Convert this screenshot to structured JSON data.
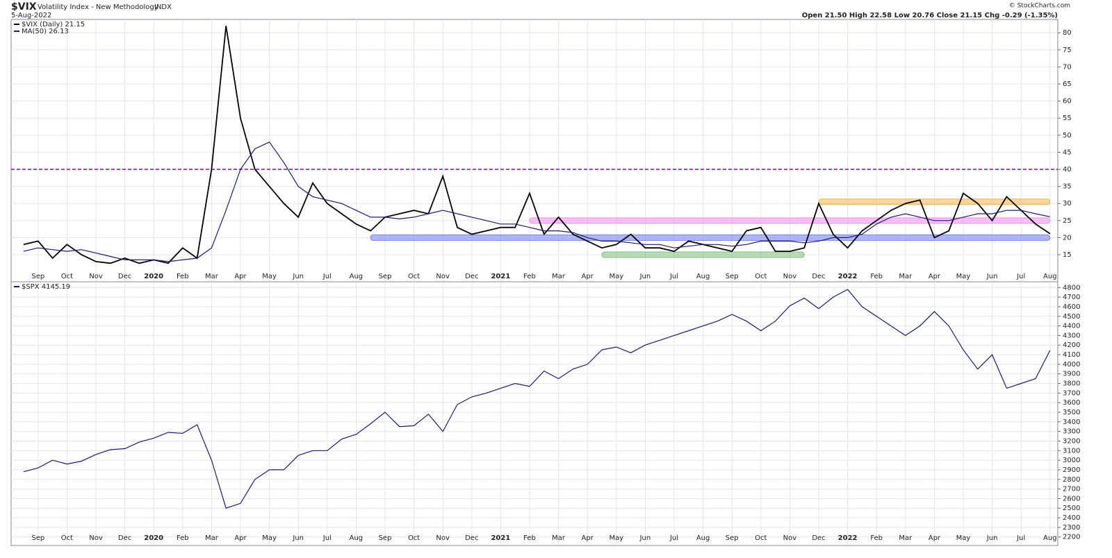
{
  "header": {
    "symbol": "$VIX",
    "name": "Volatility Index - New Methodology",
    "exchange": "INDX",
    "date": "5-Aug-2022",
    "copyright": "© StockCharts.com",
    "ohlc": "Open 21.50  High 22.58  Low 20.76  Close 21.15  Chg -0.29 (-1.35%)"
  },
  "chart_data": [
    {
      "type": "line",
      "categories": [
        null,
        "Sep",
        null,
        "Oct",
        null,
        "Nov",
        null,
        "Dec",
        null,
        "2020",
        null,
        "Feb",
        null,
        "Mar",
        null,
        "Apr",
        null,
        "May",
        null,
        "Jun",
        null,
        "Jul",
        null,
        "Aug",
        null,
        "Sep",
        null,
        "Oct",
        null,
        "Nov",
        null,
        "Dec",
        null,
        "2021",
        null,
        "Feb",
        null,
        "Mar",
        null,
        "Apr",
        null,
        "May",
        null,
        "Jun",
        null,
        "Jul",
        null,
        "Aug",
        null,
        "Sep",
        null,
        "Oct",
        null,
        "Nov",
        null,
        "Dec",
        null,
        "2022",
        null,
        "Feb",
        null,
        "Mar",
        null,
        "Apr",
        null,
        "May",
        null,
        "Jun",
        null,
        "Jul",
        null,
        "Aug"
      ],
      "series": [
        {
          "name": "$VIX (Daily) 21.15",
          "color": "#000000",
          "values": [
            18,
            19,
            14,
            18,
            15,
            13,
            12.5,
            14,
            12.5,
            13.5,
            12.5,
            17,
            14,
            40,
            82,
            55,
            40,
            35,
            30,
            26,
            36,
            30,
            27,
            24,
            22,
            26,
            27,
            28,
            27,
            38,
            23,
            21,
            22,
            23,
            23,
            33,
            21,
            26,
            21,
            19,
            17,
            18,
            21,
            17,
            17,
            16,
            19,
            18,
            17,
            16,
            22,
            23,
            16,
            16,
            17,
            30,
            21,
            17,
            22,
            25,
            28,
            30,
            31,
            20,
            22,
            33,
            30,
            25,
            32,
            28,
            24,
            21.15
          ]
        },
        {
          "name": "MA(50) 26.13",
          "color": "#1a1a6e",
          "values": [
            16,
            17,
            16.5,
            16,
            16.5,
            15.5,
            14.5,
            13.5,
            13.5,
            13.5,
            13,
            13.5,
            14,
            17,
            28,
            40,
            46,
            48,
            42,
            35,
            32,
            31,
            30,
            28,
            26,
            26,
            25.5,
            26,
            27,
            28,
            27,
            26,
            25,
            24,
            24,
            23,
            22,
            22,
            21.5,
            20,
            19,
            19,
            18.5,
            18,
            18,
            17,
            17.5,
            18,
            18,
            17.5,
            18,
            19,
            19,
            19,
            18.5,
            19,
            20,
            20,
            21,
            24,
            26,
            27,
            26,
            25,
            25,
            26,
            27,
            27,
            28,
            28,
            27,
            26.13
          ]
        }
      ],
      "ylim": [
        8.3,
        83.5
      ],
      "yticks": [
        15,
        20,
        25,
        30,
        35,
        40,
        45,
        50,
        55,
        60,
        65,
        70,
        75,
        80
      ],
      "grid": true,
      "levels": [
        {
          "value": 40,
          "color": "#8a00b8"
        }
      ],
      "bands": [
        {
          "value": 30.5,
          "color": "#f5b54a",
          "from": 55,
          "to": 71
        },
        {
          "value": 25,
          "color": "#f08ef0",
          "from": 35,
          "to": 71
        },
        {
          "value": 20,
          "color": "#6f7ff0",
          "from": 24,
          "to": 71
        },
        {
          "value": 15,
          "color": "#7fbf7f",
          "from": 40,
          "to": 54
        }
      ]
    },
    {
      "type": "line",
      "categories": [
        null,
        "Sep",
        null,
        "Oct",
        null,
        "Nov",
        null,
        "Dec",
        null,
        "2020",
        null,
        "Feb",
        null,
        "Mar",
        null,
        "Apr",
        null,
        "May",
        null,
        "Jun",
        null,
        "Jul",
        null,
        "Aug",
        null,
        "Sep",
        null,
        "Oct",
        null,
        "Nov",
        null,
        "Dec",
        null,
        "2021",
        null,
        "Feb",
        null,
        "Mar",
        null,
        "Apr",
        null,
        "May",
        null,
        "Jun",
        null,
        "Jul",
        null,
        "Aug",
        null,
        "Sep",
        null,
        "Oct",
        null,
        "Nov",
        null,
        "Dec",
        null,
        "2022",
        null,
        "Feb",
        null,
        "Mar",
        null,
        "Apr",
        null,
        "May",
        null,
        "Jun",
        null,
        "Jul",
        null,
        "Aug"
      ],
      "series": [
        {
          "name": "$SPX 4145.19",
          "color": "#1a1a6e",
          "values": [
            2880,
            2920,
            3000,
            2960,
            2990,
            3060,
            3110,
            3120,
            3190,
            3230,
            3290,
            3280,
            3370,
            3000,
            2500,
            2550,
            2800,
            2900,
            2900,
            3050,
            3100,
            3100,
            3220,
            3270,
            3380,
            3500,
            3350,
            3360,
            3480,
            3300,
            3580,
            3660,
            3700,
            3750,
            3800,
            3770,
            3930,
            3850,
            3950,
            4000,
            4150,
            4180,
            4120,
            4200,
            4250,
            4300,
            4350,
            4400,
            4450,
            4520,
            4450,
            4350,
            4450,
            4610,
            4690,
            4580,
            4700,
            4780,
            4600,
            4500,
            4400,
            4300,
            4400,
            4550,
            4400,
            4150,
            3950,
            4100,
            3750,
            3800,
            3850,
            4145.19
          ]
        }
      ],
      "ylim": [
        2140,
        4860
      ],
      "yticks": [
        2200,
        2300,
        2400,
        2500,
        2600,
        2700,
        2800,
        2900,
        3000,
        3100,
        3200,
        3300,
        3400,
        3500,
        3600,
        3700,
        3800,
        3900,
        4000,
        4100,
        4200,
        4300,
        4400,
        4500,
        4600,
        4700,
        4800
      ],
      "grid": true
    }
  ]
}
